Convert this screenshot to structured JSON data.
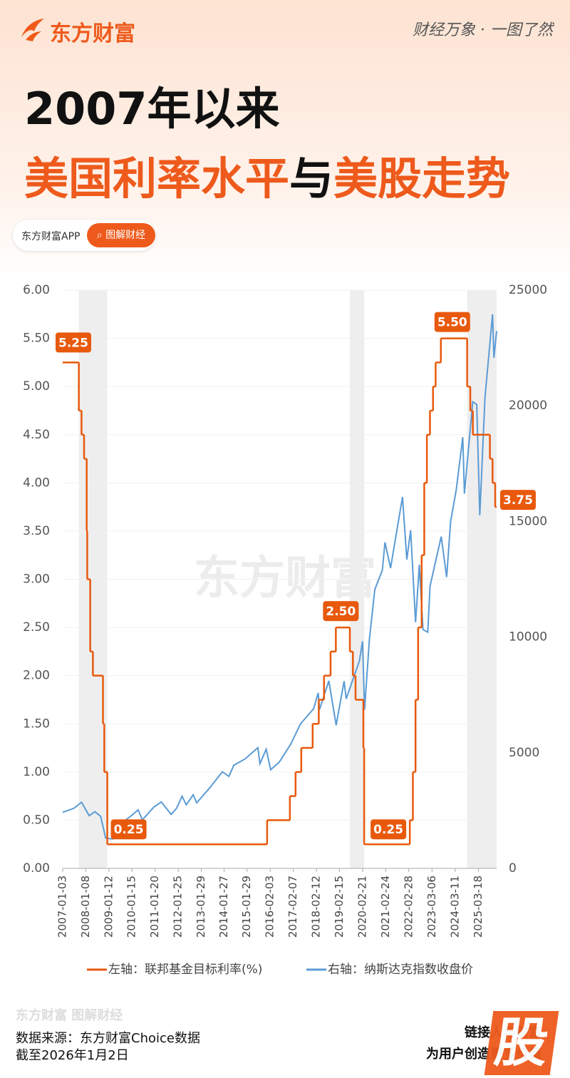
{
  "header": {
    "brand": "东方财富",
    "slogan": "财经万象 · 一图了然",
    "title_line1": "2007年以来",
    "title_part1": "美国利率水平",
    "title_part2": "与",
    "title_part3": "美股走势",
    "app": "东方财富APP",
    "tag": "图解财经"
  },
  "chart_data": {
    "type": "line",
    "watermark": "东方财富",
    "xlim": [
      "2007-01-03",
      "2026-01-02"
    ],
    "xticks": [
      "2007-01-03",
      "2008-01-08",
      "2009-01-12",
      "2010-01-15",
      "2011-01-20",
      "2012-01-25",
      "2013-01-29",
      "2014-01-27",
      "2015-01-29",
      "2016-02-03",
      "2017-02-07",
      "2018-02-12",
      "2019-02-15",
      "2020-02-21",
      "2021-02-24",
      "2022-02-28",
      "2023-03-06",
      "2024-03-11",
      "2025-03-18"
    ],
    "ylim": [
      0,
      6
    ],
    "yticks": [
      {
        "value": 0,
        "label": "0.00"
      },
      {
        "value": 0.5,
        "label": "0.50"
      },
      {
        "value": 1,
        "label": "1.00"
      },
      {
        "value": 1.5,
        "label": "1.50"
      },
      {
        "value": 2,
        "label": "2.00"
      },
      {
        "value": 2.5,
        "label": "2.50"
      },
      {
        "value": 3,
        "label": "3.00"
      },
      {
        "value": 3.5,
        "label": "3.50"
      },
      {
        "value": 4,
        "label": "4.00"
      },
      {
        "value": 4.5,
        "label": "4.50"
      },
      {
        "value": 5,
        "label": "5.00"
      },
      {
        "value": 5.5,
        "label": "5.50"
      },
      {
        "value": 6,
        "label": "6.00"
      }
    ],
    "y2lim": [
      0,
      25000
    ],
    "y2ticks": [
      0,
      5000,
      10000,
      15000,
      20000,
      25000
    ],
    "grid": true,
    "shaded_periods": [
      [
        "2007-09-18",
        "2008-12-16"
      ],
      [
        "2019-07-31",
        "2020-03-16"
      ],
      [
        "2024-09-18",
        "2026-01-02"
      ]
    ],
    "series": [
      {
        "name": "左轴：联邦基金目标利率(%)",
        "color": "#e8590c",
        "step": true,
        "x": [
          "2007-01-03",
          "2007-09-18",
          "2007-10-31",
          "2007-12-11",
          "2008-01-22",
          "2008-01-30",
          "2008-03-18",
          "2008-04-30",
          "2008-10-08",
          "2008-10-29",
          "2008-12-16",
          "2015-12-16",
          "2016-12-14",
          "2017-03-15",
          "2017-06-14",
          "2017-12-13",
          "2018-03-21",
          "2018-06-13",
          "2018-09-26",
          "2018-12-19",
          "2019-07-31",
          "2019-09-18",
          "2019-10-30",
          "2020-03-03",
          "2020-03-16",
          "2022-03-16",
          "2022-05-04",
          "2022-06-15",
          "2022-07-27",
          "2022-09-21",
          "2022-11-02",
          "2022-12-14",
          "2023-02-01",
          "2023-03-22",
          "2023-05-03",
          "2023-07-26",
          "2024-09-18",
          "2024-11-07",
          "2024-12-18",
          "2025-09-17",
          "2025-10-29",
          "2025-12-10"
        ],
        "values": [
          5.25,
          4.75,
          4.5,
          4.25,
          3.5,
          3,
          2.25,
          2,
          1.5,
          1,
          0.25,
          0.5,
          0.75,
          1,
          1.25,
          1.5,
          1.75,
          2,
          2.25,
          2.5,
          2.25,
          2,
          1.75,
          1.25,
          0.25,
          0.5,
          1,
          1.75,
          2.5,
          3.25,
          4,
          4.5,
          4.75,
          5,
          5.25,
          5.5,
          5,
          4.75,
          4.5,
          4.25,
          4,
          3.75
        ],
        "value_labels": [
          "5.25",
          null,
          null,
          null,
          null,
          null,
          null,
          null,
          null,
          null,
          "0.25",
          null,
          null,
          null,
          null,
          null,
          null,
          null,
          null,
          "2.50",
          null,
          null,
          null,
          null,
          "0.25",
          null,
          null,
          null,
          null,
          null,
          null,
          null,
          null,
          null,
          null,
          "5.50",
          null,
          null,
          null,
          null,
          null,
          "3.75"
        ]
      },
      {
        "name": "右轴：纳斯达克指数收盘价",
        "color": "#5b9bd5",
        "axis": "y2",
        "x": [
          "2007-01-03",
          "2007-07-01",
          "2007-10-31",
          "2008-03-01",
          "2008-06-01",
          "2008-09-01",
          "2008-11-20",
          "2009-03-09",
          "2009-06-01",
          "2009-12-31",
          "2010-04-23",
          "2010-07-01",
          "2010-12-31",
          "2011-04-29",
          "2011-10-03",
          "2011-12-30",
          "2012-03-26",
          "2012-06-01",
          "2012-09-19",
          "2012-11-15",
          "2013-06-01",
          "2013-12-31",
          "2014-04-14",
          "2014-07-01",
          "2014-12-31",
          "2015-07-20",
          "2015-08-24",
          "2015-12-01",
          "2016-02-11",
          "2016-06-27",
          "2016-12-30",
          "2017-06-01",
          "2017-12-29",
          "2018-03-12",
          "2018-04-02",
          "2018-08-29",
          "2018-12-24",
          "2019-04-30",
          "2019-06-03",
          "2019-12-31",
          "2020-02-19",
          "2020-03-23",
          "2020-06-08",
          "2020-09-02",
          "2020-12-31",
          "2021-02-12",
          "2021-05-12",
          "2021-11-19",
          "2022-01-27",
          "2022-03-29",
          "2022-06-16",
          "2022-08-15",
          "2022-10-13",
          "2022-12-28",
          "2023-02-02",
          "2023-07-31",
          "2023-10-26",
          "2023-12-29",
          "2024-03-28",
          "2024-07-10",
          "2024-08-05",
          "2024-12-16",
          "2025-02-18",
          "2025-04-08",
          "2025-06-30",
          "2025-10-29",
          "2025-11-20",
          "2026-01-02"
        ],
        "values": [
          2423,
          2600,
          2860,
          2280,
          2450,
          2250,
          1316,
          1268,
          1830,
          2269,
          2530,
          2100,
          2653,
          2873,
          2335,
          2605,
          3122,
          2747,
          3182,
          2836,
          3450,
          4177,
          3976,
          4460,
          4736,
          5218,
          4526,
          5156,
          4267,
          4594,
          5383,
          6246,
          6903,
          7588,
          6870,
          8109,
          6193,
          8095,
          7333,
          8973,
          9817,
          6861,
          9924,
          12056,
          12888,
          14095,
          12985,
          16057,
          13353,
          14620,
          10646,
          13128,
          10321,
          10213,
          12200,
          14346,
          12595,
          15011,
          16379,
          18647,
          16200,
          20174,
          20056,
          15268,
          20370,
          23958,
          22078,
          23236
        ]
      }
    ]
  },
  "footer": {
    "watermark": "东方财富 图解财经",
    "source": "数据来源：东方财富Choice数据",
    "date": "截至2026年1月2日",
    "motto1": "链接人与财富",
    "motto2": "为用户创造更多价值",
    "stamp": "股"
  }
}
